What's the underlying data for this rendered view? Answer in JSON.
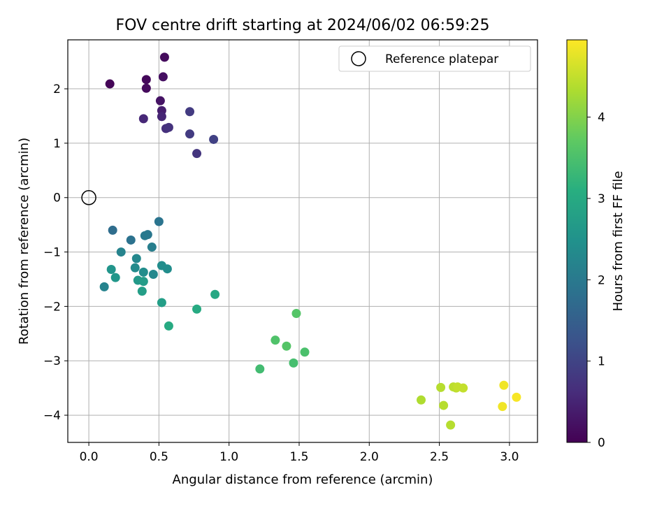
{
  "chart_data": {
    "type": "scatter",
    "title": "FOV centre drift starting at 2024/06/02 06:59:25",
    "xlabel": "Angular distance from reference (arcmin)",
    "ylabel": "Rotation from reference (arcmin)",
    "xlim": [
      -0.15,
      3.2
    ],
    "ylim": [
      -4.5,
      2.9
    ],
    "xticks": [
      0.0,
      0.5,
      1.0,
      1.5,
      2.0,
      2.5,
      3.0
    ],
    "xtick_labels": [
      "0.0",
      "0.5",
      "1.0",
      "1.5",
      "2.0",
      "2.5",
      "3.0"
    ],
    "yticks": [
      -4,
      -3,
      -2,
      -1,
      0,
      1,
      2
    ],
    "ytick_labels": [
      "−4",
      "−3",
      "−2",
      "−1",
      "0",
      "1",
      "2"
    ],
    "grid": true,
    "legend": {
      "position": "top-right",
      "entries": [
        "Reference platepar"
      ]
    },
    "reference_point": {
      "x": 0.0,
      "y": 0.0
    },
    "colorbar": {
      "label": "Hours from first FF file",
      "colormap": "viridis",
      "range": [
        0,
        4.95
      ],
      "ticks": [
        0,
        1,
        2,
        3,
        4
      ],
      "tick_labels": [
        "0",
        "1",
        "2",
        "3",
        "4"
      ]
    },
    "points": [
      {
        "x": 0.15,
        "y": 2.09,
        "c": 0.05
      },
      {
        "x": 0.41,
        "y": 2.17,
        "c": 0.1
      },
      {
        "x": 0.41,
        "y": 2.01,
        "c": 0.12
      },
      {
        "x": 0.54,
        "y": 2.58,
        "c": 0.15
      },
      {
        "x": 0.53,
        "y": 2.22,
        "c": 0.2
      },
      {
        "x": 0.51,
        "y": 1.78,
        "c": 0.25
      },
      {
        "x": 0.52,
        "y": 1.6,
        "c": 0.4
      },
      {
        "x": 0.52,
        "y": 1.49,
        "c": 0.5
      },
      {
        "x": 0.39,
        "y": 1.45,
        "c": 0.55
      },
      {
        "x": 0.55,
        "y": 1.27,
        "c": 0.65
      },
      {
        "x": 0.57,
        "y": 1.29,
        "c": 0.7
      },
      {
        "x": 0.72,
        "y": 1.58,
        "c": 0.85
      },
      {
        "x": 0.72,
        "y": 1.17,
        "c": 0.85
      },
      {
        "x": 0.77,
        "y": 0.81,
        "c": 0.75
      },
      {
        "x": 0.89,
        "y": 1.07,
        "c": 0.95
      },
      {
        "x": 0.5,
        "y": -0.44,
        "c": 1.9
      },
      {
        "x": 0.17,
        "y": -0.6,
        "c": 1.75
      },
      {
        "x": 0.42,
        "y": -0.68,
        "c": 1.95
      },
      {
        "x": 0.4,
        "y": -0.7,
        "c": 2.0
      },
      {
        "x": 0.3,
        "y": -0.78,
        "c": 1.85
      },
      {
        "x": 0.45,
        "y": -0.91,
        "c": 2.1
      },
      {
        "x": 0.23,
        "y": -1.0,
        "c": 2.2
      },
      {
        "x": 0.34,
        "y": -1.12,
        "c": 2.3
      },
      {
        "x": 0.33,
        "y": -1.29,
        "c": 2.35
      },
      {
        "x": 0.52,
        "y": -1.25,
        "c": 2.4
      },
      {
        "x": 0.56,
        "y": -1.31,
        "c": 2.4
      },
      {
        "x": 0.16,
        "y": -1.32,
        "c": 2.55
      },
      {
        "x": 0.39,
        "y": -1.37,
        "c": 2.4
      },
      {
        "x": 0.46,
        "y": -1.41,
        "c": 2.3
      },
      {
        "x": 0.19,
        "y": -1.47,
        "c": 2.6
      },
      {
        "x": 0.35,
        "y": -1.52,
        "c": 2.65
      },
      {
        "x": 0.39,
        "y": -1.54,
        "c": 2.7
      },
      {
        "x": 0.11,
        "y": -1.64,
        "c": 2.2
      },
      {
        "x": 0.38,
        "y": -1.72,
        "c": 2.75
      },
      {
        "x": 0.52,
        "y": -1.93,
        "c": 2.75
      },
      {
        "x": 0.9,
        "y": -1.78,
        "c": 2.95
      },
      {
        "x": 0.77,
        "y": -2.05,
        "c": 3.0
      },
      {
        "x": 0.57,
        "y": -2.36,
        "c": 3.0
      },
      {
        "x": 1.48,
        "y": -2.13,
        "c": 3.6
      },
      {
        "x": 1.33,
        "y": -2.62,
        "c": 3.55
      },
      {
        "x": 1.41,
        "y": -2.73,
        "c": 3.6
      },
      {
        "x": 1.54,
        "y": -2.84,
        "c": 3.5
      },
      {
        "x": 1.46,
        "y": -3.04,
        "c": 3.45
      },
      {
        "x": 1.22,
        "y": -3.15,
        "c": 3.4
      },
      {
        "x": 2.37,
        "y": -3.72,
        "c": 4.35
      },
      {
        "x": 2.51,
        "y": -3.49,
        "c": 4.4
      },
      {
        "x": 2.53,
        "y": -3.82,
        "c": 4.4
      },
      {
        "x": 2.6,
        "y": -3.48,
        "c": 4.45
      },
      {
        "x": 2.62,
        "y": -3.5,
        "c": 4.45
      },
      {
        "x": 2.63,
        "y": -3.48,
        "c": 4.5
      },
      {
        "x": 2.67,
        "y": -3.5,
        "c": 4.5
      },
      {
        "x": 2.58,
        "y": -4.18,
        "c": 4.4
      },
      {
        "x": 2.96,
        "y": -3.45,
        "c": 4.85
      },
      {
        "x": 3.05,
        "y": -3.67,
        "c": 4.9
      },
      {
        "x": 2.95,
        "y": -3.84,
        "c": 4.85
      }
    ]
  }
}
